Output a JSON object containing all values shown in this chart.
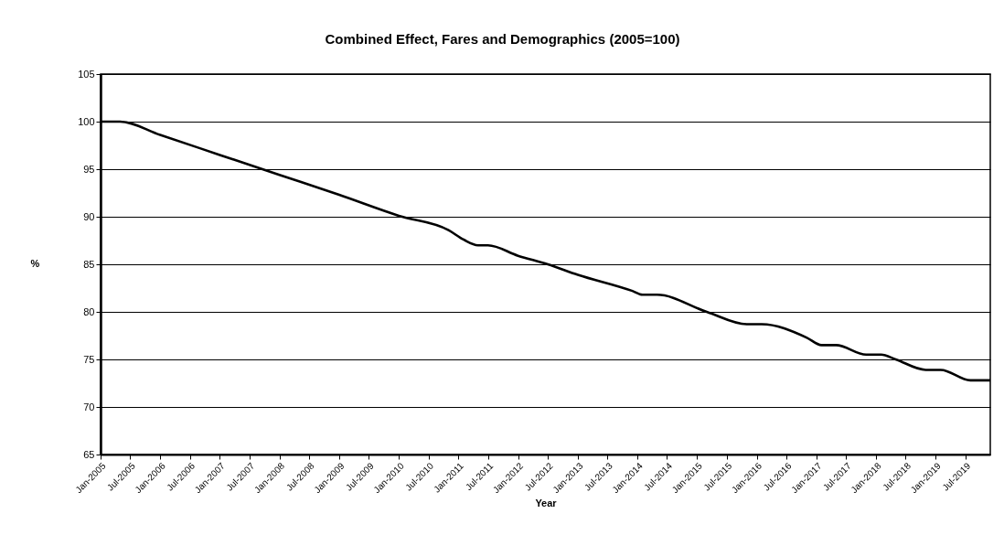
{
  "chart_data": {
    "type": "line",
    "title": "Combined Effect, Fares and Demographics (2005=100)",
    "xlabel": "Year",
    "ylabel": "%",
    "x": [
      "2005-01",
      "2005-05",
      "2006-01",
      "2007-01",
      "2008-01",
      "2009-01",
      "2010-01",
      "2010-11",
      "2011-02",
      "2011-05",
      "2011-07",
      "2012-01",
      "2012-07",
      "2013-01",
      "2013-12",
      "2014-02",
      "2014-05",
      "2015-03",
      "2015-11",
      "2016-02",
      "2016-11",
      "2017-02",
      "2017-05",
      "2017-11",
      "2018-02",
      "2018-05",
      "2018-11",
      "2019-02",
      "2019-08",
      "2019-12"
    ],
    "series": [
      {
        "color": "#000000",
        "values": [
          100,
          100,
          98.6,
          96.5,
          94.4,
          92.3,
          90.1,
          88.6,
          87.6,
          87.0,
          87.0,
          85.9,
          85.0,
          83.9,
          82.2,
          81.8,
          81.8,
          80.0,
          78.7,
          78.7,
          77.3,
          76.5,
          76.5,
          75.5,
          75.5,
          75.0,
          73.9,
          73.9,
          72.8,
          72.8
        ]
      }
    ],
    "xlim": [
      "2005-01",
      "2019-12"
    ],
    "xticks": [
      {
        "value": "2005-01",
        "label": "Jan-2005"
      },
      {
        "value": "2005-07",
        "label": "Jul-2005"
      },
      {
        "value": "2006-01",
        "label": "Jan-2006"
      },
      {
        "value": "2006-07",
        "label": "Jul-2006"
      },
      {
        "value": "2007-01",
        "label": "Jan-2007"
      },
      {
        "value": "2007-07",
        "label": "Jul-2007"
      },
      {
        "value": "2008-01",
        "label": "Jan-2008"
      },
      {
        "value": "2008-07",
        "label": "Jul-2008"
      },
      {
        "value": "2009-01",
        "label": "Jan-2009"
      },
      {
        "value": "2009-07",
        "label": "Jul-2009"
      },
      {
        "value": "2010-01",
        "label": "Jan-2010"
      },
      {
        "value": "2010-07",
        "label": "Jul-2010"
      },
      {
        "value": "2011-01",
        "label": "Jan-2011"
      },
      {
        "value": "2011-07",
        "label": "Jul-2011"
      },
      {
        "value": "2012-01",
        "label": "Jan-2012"
      },
      {
        "value": "2012-07",
        "label": "Jul-2012"
      },
      {
        "value": "2013-01",
        "label": "Jan-2013"
      },
      {
        "value": "2013-07",
        "label": "Jul-2013"
      },
      {
        "value": "2014-01",
        "label": "Jan-2014"
      },
      {
        "value": "2014-07",
        "label": "Jul-2014"
      },
      {
        "value": "2015-01",
        "label": "Jan-2015"
      },
      {
        "value": "2015-07",
        "label": "Jul-2015"
      },
      {
        "value": "2016-01",
        "label": "Jan-2016"
      },
      {
        "value": "2016-07",
        "label": "Jul-2016"
      },
      {
        "value": "2017-01",
        "label": "Jan-2017"
      },
      {
        "value": "2017-07",
        "label": "Jul-2017"
      },
      {
        "value": "2018-01",
        "label": "Jan-2018"
      },
      {
        "value": "2018-07",
        "label": "Jul-2018"
      },
      {
        "value": "2019-01",
        "label": "Jan-2019"
      },
      {
        "value": "2019-07",
        "label": "Jul-2019"
      }
    ],
    "ylim": [
      65,
      105
    ],
    "yticks": [
      65,
      70,
      75,
      80,
      85,
      90,
      95,
      100,
      105
    ],
    "grid": "y",
    "line_style": "solid"
  }
}
